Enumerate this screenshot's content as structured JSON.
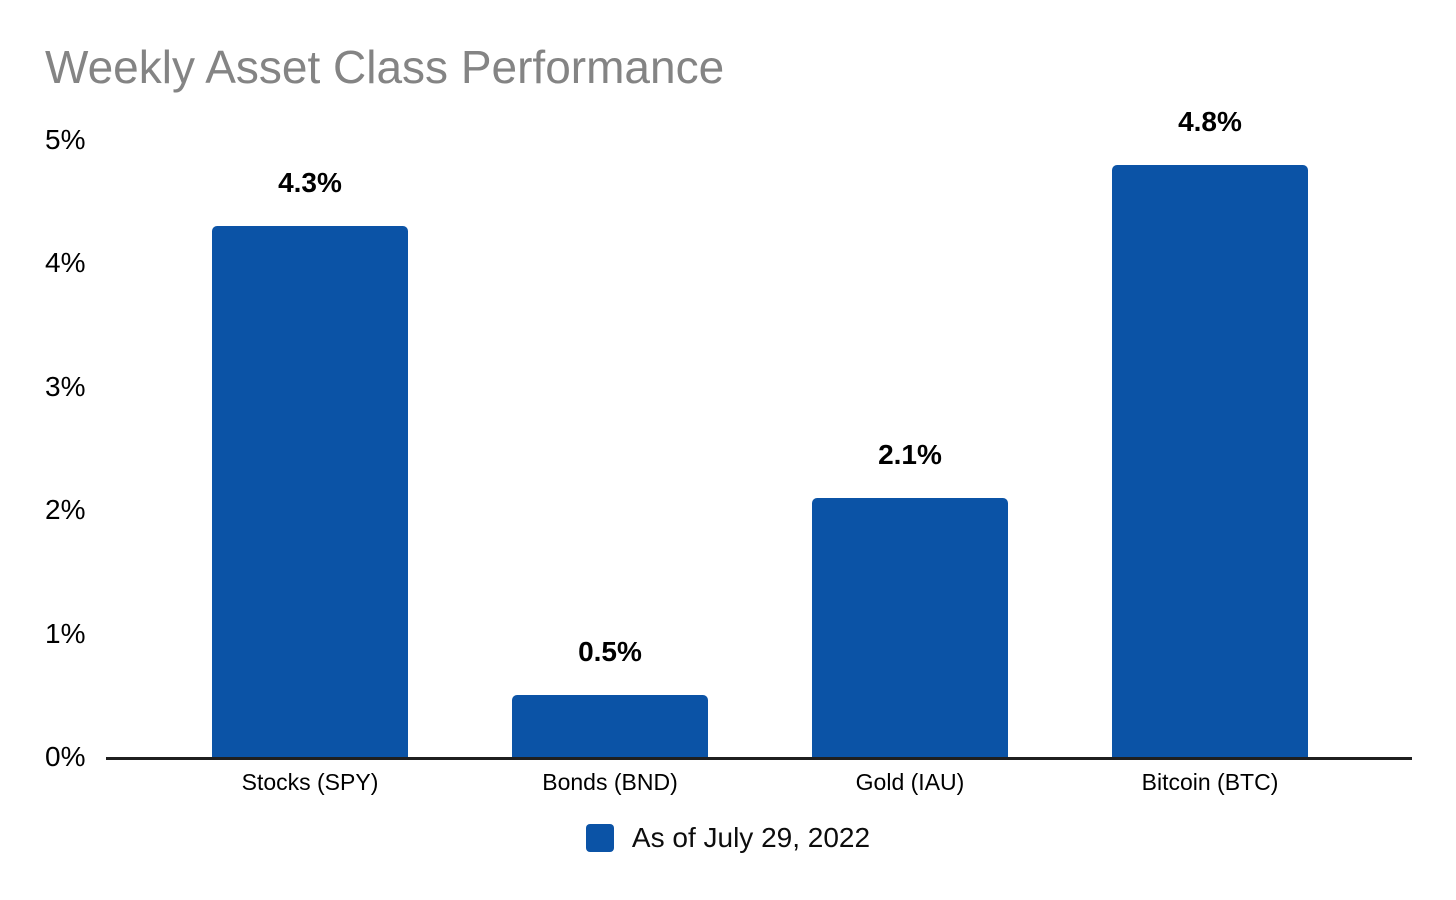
{
  "chart_data": {
    "type": "bar",
    "title": "Weekly Asset Class Performance",
    "categories": [
      "Stocks (SPY)",
      "Bonds (BND)",
      "Gold (IAU)",
      "Bitcoin (BTC)"
    ],
    "values": [
      4.3,
      0.5,
      2.1,
      4.8
    ],
    "data_labels": [
      "4.3%",
      "0.5%",
      "2.1%",
      "4.8%"
    ],
    "y_tick_values": [
      0,
      1,
      2,
      3,
      4,
      5
    ],
    "y_tick_labels": [
      "0%",
      "1%",
      "2%",
      "3%",
      "4%",
      "5%"
    ],
    "ylim": [
      0,
      5
    ],
    "xlabel": "",
    "ylabel": "",
    "grid": false,
    "legend": {
      "label": "As of July 29, 2022",
      "position": "bottom-center"
    },
    "colors": {
      "bar": "#0B53A6",
      "title": "#848484",
      "text": "#000000",
      "axis_line": "#1F1F1F",
      "background": "#FFFFFF"
    }
  }
}
